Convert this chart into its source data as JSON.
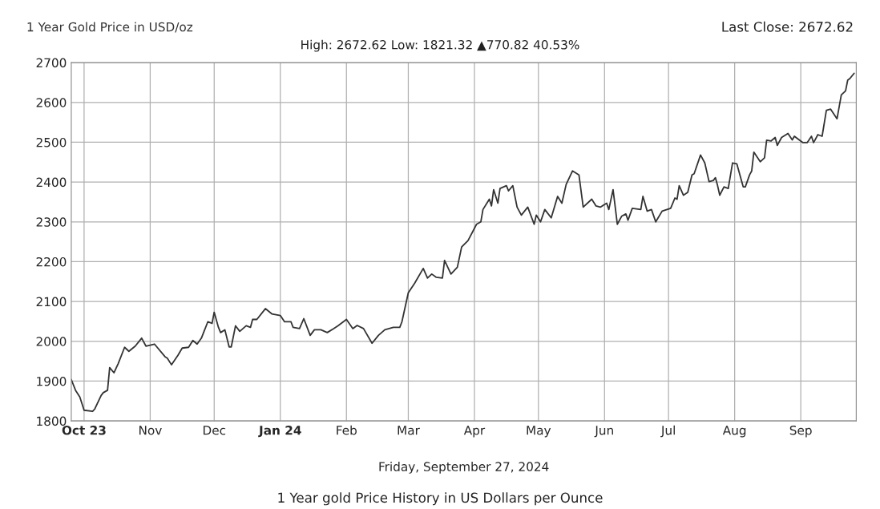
{
  "chart_data": {
    "type": "line",
    "title": "1 Year Gold Price in USD/oz",
    "subtitle": "High: 2672.62 Low: 1821.32 ▲770.82 40.53%",
    "xlabel": "Friday, September 27, 2024",
    "annotations": [
      "Last Close: 2672.62",
      "1 Year gold Price History in US Dollars per Ounce"
    ],
    "x": [
      "2023-09-25",
      "2023-09-27",
      "2023-09-29",
      "2023-10-01",
      "2023-10-05",
      "2023-10-06",
      "2023-10-09",
      "2023-10-10",
      "2023-10-12",
      "2023-10-13",
      "2023-10-15",
      "2023-10-17",
      "2023-10-20",
      "2023-10-22",
      "2023-10-25",
      "2023-10-28",
      "2023-10-30",
      "2023-11-03",
      "2023-11-08",
      "2023-11-09",
      "2023-11-11",
      "2023-11-14",
      "2023-11-16",
      "2023-11-19",
      "2023-11-21",
      "2023-11-23",
      "2023-11-25",
      "2023-11-28",
      "2023-11-30",
      "2023-12-01",
      "2023-12-03",
      "2023-12-04",
      "2023-12-06",
      "2023-12-08",
      "2023-12-09",
      "2023-12-11",
      "2023-12-13",
      "2023-12-16",
      "2023-12-18",
      "2023-12-19",
      "2023-12-21",
      "2023-12-25",
      "2023-12-28",
      "2024-01-01",
      "2024-01-03",
      "2024-01-06",
      "2024-01-07",
      "2024-01-10",
      "2024-01-12",
      "2024-01-15",
      "2024-01-17",
      "2024-01-20",
      "2024-01-23",
      "2024-01-26",
      "2024-01-28",
      "2024-02-01",
      "2024-02-04",
      "2024-02-06",
      "2024-02-09",
      "2024-02-13",
      "2024-02-16",
      "2024-02-19",
      "2024-02-23",
      "2024-02-26",
      "2024-02-27",
      "2024-03-01",
      "2024-03-04",
      "2024-03-08",
      "2024-03-10",
      "2024-03-12",
      "2024-03-14",
      "2024-03-17",
      "2024-03-18",
      "2024-03-21",
      "2024-03-24",
      "2024-03-26",
      "2024-03-29",
      "2024-04-02",
      "2024-04-04",
      "2024-04-05",
      "2024-04-08",
      "2024-04-09",
      "2024-04-10",
      "2024-04-12",
      "2024-04-13",
      "2024-04-16",
      "2024-04-17",
      "2024-04-19",
      "2024-04-21",
      "2024-04-23",
      "2024-04-26",
      "2024-04-29",
      "2024-04-30",
      "2024-05-02",
      "2024-05-04",
      "2024-05-07",
      "2024-05-10",
      "2024-05-12",
      "2024-05-14",
      "2024-05-17",
      "2024-05-20",
      "2024-05-22",
      "2024-05-26",
      "2024-05-28",
      "2024-05-30",
      "2024-06-02",
      "2024-06-03",
      "2024-06-05",
      "2024-06-07",
      "2024-06-09",
      "2024-06-11",
      "2024-06-12",
      "2024-06-14",
      "2024-06-18",
      "2024-06-19",
      "2024-06-21",
      "2024-06-23",
      "2024-06-25",
      "2024-06-28",
      "2024-07-02",
      "2024-07-04",
      "2024-07-05",
      "2024-07-06",
      "2024-07-08",
      "2024-07-10",
      "2024-07-12",
      "2024-07-13",
      "2024-07-16",
      "2024-07-18",
      "2024-07-20",
      "2024-07-22",
      "2024-07-23",
      "2024-07-24",
      "2024-07-25",
      "2024-07-27",
      "2024-07-29",
      "2024-07-31",
      "2024-08-02",
      "2024-08-05",
      "2024-08-06",
      "2024-08-08",
      "2024-08-09",
      "2024-08-10",
      "2024-08-13",
      "2024-08-15",
      "2024-08-16",
      "2024-08-18",
      "2024-08-20",
      "2024-08-21",
      "2024-08-23",
      "2024-08-26",
      "2024-08-28",
      "2024-08-29",
      "2024-09-02",
      "2024-09-04",
      "2024-09-06",
      "2024-09-07",
      "2024-09-09",
      "2024-09-11",
      "2024-09-13",
      "2024-09-15",
      "2024-09-18",
      "2024-09-20",
      "2024-09-22",
      "2024-09-23",
      "2024-09-24",
      "2024-09-26"
    ],
    "series": [
      {
        "color": "#333333",
        "values": [
          1904,
          1877,
          1860,
          1827,
          1824,
          1830,
          1864,
          1871,
          1877,
          1934,
          1921,
          1944,
          1985,
          1975,
          1988,
          2008,
          1988,
          1993,
          1961,
          1958,
          1941,
          1965,
          1983,
          1985,
          2002,
          1993,
          2008,
          2049,
          2045,
          2073,
          2035,
          2022,
          2029,
          1986,
          1986,
          2039,
          2025,
          2039,
          2035,
          2055,
          2055,
          2082,
          2069,
          2065,
          2049,
          2049,
          2035,
          2032,
          2057,
          2015,
          2029,
          2029,
          2022,
          2032,
          2039,
          2055,
          2032,
          2040,
          2032,
          1995,
          2015,
          2029,
          2035,
          2035,
          2049,
          2122,
          2146,
          2183,
          2159,
          2169,
          2161,
          2159,
          2203,
          2169,
          2186,
          2237,
          2253,
          2294,
          2300,
          2331,
          2357,
          2340,
          2381,
          2347,
          2384,
          2391,
          2378,
          2391,
          2337,
          2317,
          2337,
          2294,
          2317,
          2300,
          2331,
          2310,
          2364,
          2347,
          2394,
          2428,
          2418,
          2337,
          2357,
          2340,
          2337,
          2347,
          2331,
          2381,
          2294,
          2314,
          2320,
          2304,
          2334,
          2331,
          2364,
          2327,
          2331,
          2300,
          2327,
          2334,
          2360,
          2357,
          2391,
          2367,
          2374,
          2418,
          2421,
          2468,
          2448,
          2401,
          2404,
          2411,
          2391,
          2367,
          2388,
          2384,
          2448,
          2446,
          2388,
          2388,
          2418,
          2428,
          2475,
          2451,
          2461,
          2505,
          2503,
          2512,
          2492,
          2512,
          2522,
          2506,
          2515,
          2499,
          2499,
          2515,
          2499,
          2519,
          2515,
          2580,
          2583,
          2559,
          2619,
          2629,
          2656,
          2660,
          2673
        ]
      }
    ],
    "xlim": [
      "2023-09-25",
      "2024-09-27"
    ],
    "xticks": [
      {
        "value": "2023-10-01",
        "label": "Oct 23"
      },
      {
        "value": "2023-11-01",
        "label": "Nov"
      },
      {
        "value": "2023-12-01",
        "label": "Dec"
      },
      {
        "value": "2024-01-01",
        "label": "Jan 24"
      },
      {
        "value": "2024-02-01",
        "label": "Feb"
      },
      {
        "value": "2024-03-01",
        "label": "Mar"
      },
      {
        "value": "2024-04-01",
        "label": "Apr"
      },
      {
        "value": "2024-05-01",
        "label": "May"
      },
      {
        "value": "2024-06-01",
        "label": "Jun"
      },
      {
        "value": "2024-07-01",
        "label": "Jul"
      },
      {
        "value": "2024-08-01",
        "label": "Aug"
      },
      {
        "value": "2024-09-01",
        "label": "Sep"
      }
    ],
    "ylim": [
      1800,
      2700
    ],
    "yticks": [
      1800,
      1900,
      2000,
      2100,
      2200,
      2300,
      2400,
      2500,
      2600,
      2700
    ],
    "grid": true,
    "marker": "none",
    "line_style": "solid"
  }
}
